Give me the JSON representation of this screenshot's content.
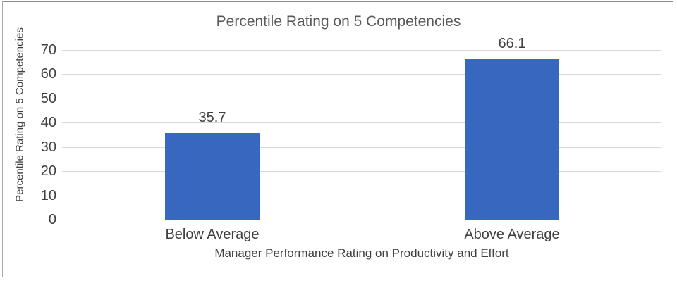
{
  "colors": {
    "bar_fill": "#3767BE",
    "grid_line": "#D8D8D8",
    "axis_line": "#D8D8D8",
    "title_text": "#595959",
    "label_text": "#404040",
    "frame_border": "#A9A9A9",
    "background": "#FFFFFF"
  },
  "chart_data": {
    "type": "bar",
    "title": "Percentile Rating on 5 Competencies",
    "categories": [
      "Below Average",
      "Above Average"
    ],
    "values": [
      35.7,
      66.1
    ],
    "data_labels": [
      "35.7",
      "66.1"
    ],
    "xlabel": "Manager Performance Rating on Productivity and Effort",
    "ylabel": "Percentile Rating on 5 Competencies",
    "ylim": [
      0,
      70
    ],
    "yticks": [
      0,
      10,
      20,
      30,
      40,
      50,
      60,
      70
    ],
    "grid": "horizontal",
    "legend": "none"
  }
}
